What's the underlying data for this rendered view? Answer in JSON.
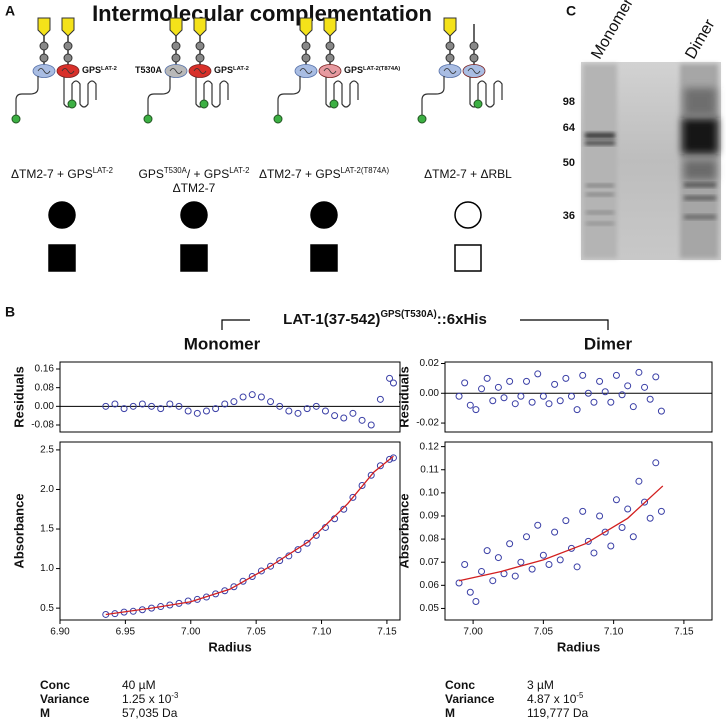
{
  "panel_a": {
    "label": "A",
    "title": "Intermolecular complementation",
    "constructs": [
      {
        "tags": {
          "right": [
            {
              "text": "GPS"
            },
            {
              "sup": "LAT-2"
            }
          ]
        },
        "caption": [
          [
            {
              "text": "ΔTM2-7 + GPS"
            },
            {
              "sup": "LAT-2"
            }
          ]
        ],
        "filled": true
      },
      {
        "tags": {
          "left": [
            {
              "text": "T530A"
            }
          ],
          "right": [
            {
              "text": "GPS"
            },
            {
              "sup": "LAT-2"
            }
          ]
        },
        "caption": [
          [
            {
              "text": "GPS"
            },
            {
              "sup": "T530A"
            },
            {
              "text": "/ + GPS"
            },
            {
              "sup": "LAT-2"
            }
          ],
          [
            {
              "text": "ΔTM2-7"
            }
          ]
        ],
        "filled": true
      },
      {
        "tags": {
          "right": [
            {
              "text": "GPS"
            },
            {
              "sup": "LAT-2(T874A)"
            }
          ]
        },
        "caption": [
          [
            {
              "text": "ΔTM2-7 + GPS"
            },
            {
              "sup": "LAT-2(T874A)"
            }
          ]
        ],
        "filled": true
      },
      {
        "tags": {},
        "caption": [
          [
            {
              "text": "ΔTM2-7 + ΔRBL"
            }
          ]
        ],
        "filled": false
      }
    ]
  },
  "panel_b": {
    "label": "B",
    "title": [
      {
        "text": "LAT-1(37-542)"
      },
      {
        "sup": "GPS(T530A)"
      },
      {
        "text": "::6xHis"
      }
    ],
    "columns": [
      {
        "subtitle": "Monomer",
        "stats": [
          {
            "label": "Conc",
            "value": [
              {
                "text": "40 µM"
              }
            ]
          },
          {
            "label": "Variance",
            "value": [
              {
                "text": "1.25 x 10"
              },
              {
                "sup": "-3"
              }
            ]
          },
          {
            "label": "M",
            "value": [
              {
                "text": "57,035 Da"
              }
            ]
          }
        ]
      },
      {
        "subtitle": "Dimer",
        "stats": [
          {
            "label": "Conc",
            "value": [
              {
                "text": "3 µM"
              }
            ]
          },
          {
            "label": "Variance",
            "value": [
              {
                "text": "4.87 x 10"
              },
              {
                "sup": "-5"
              }
            ]
          },
          {
            "label": "M",
            "value": [
              {
                "text": "119,777 Da"
              }
            ]
          }
        ]
      }
    ]
  },
  "panel_c": {
    "label": "C",
    "lanes": [
      "Monomer",
      "Dimer"
    ],
    "markers": [
      98,
      64,
      50,
      36
    ]
  },
  "chart_data": [
    {
      "type": "scatter",
      "ylabel": "Residuals",
      "zero_line": true,
      "xlim": [
        6.9,
        7.16
      ],
      "ylim": [
        -0.11,
        0.19
      ],
      "yticks": [
        0.16,
        0.08,
        {
          "value": 0,
          "label": "0.00"
        },
        -0.08
      ],
      "series": [
        {
          "color": "#3a3fa6",
          "mode": "markers",
          "x": [
            6.935,
            6.942,
            6.949,
            6.956,
            6.963,
            6.97,
            6.977,
            6.984,
            6.991,
            6.998,
            7.005,
            7.012,
            7.019,
            7.026,
            7.033,
            7.04,
            7.047,
            7.054,
            7.061,
            7.068,
            7.075,
            7.082,
            7.089,
            7.096,
            7.103,
            7.11,
            7.117,
            7.124,
            7.131,
            7.138,
            7.145,
            7.152,
            7.155
          ],
          "values": [
            0.0,
            0.01,
            -0.01,
            0.0,
            0.01,
            0.0,
            -0.01,
            0.01,
            0.0,
            -0.02,
            -0.03,
            -0.02,
            -0.01,
            0.01,
            0.02,
            0.04,
            0.05,
            0.04,
            0.02,
            0.0,
            -0.02,
            -0.03,
            -0.01,
            0.0,
            -0.02,
            -0.04,
            -0.05,
            -0.03,
            -0.06,
            -0.08,
            0.03,
            0.12,
            0.1
          ]
        }
      ]
    },
    {
      "type": "scatter",
      "ylabel": "Absorbance",
      "xlabel": "Radius",
      "xlim": [
        6.9,
        7.16
      ],
      "ylim": [
        0.35,
        2.6
      ],
      "xticks": [
        {
          "value": 6.9,
          "label": "6.90"
        },
        6.95,
        {
          "value": 7,
          "label": "7.00"
        },
        7.05,
        {
          "value": 7.1,
          "label": "7.10"
        },
        7.15
      ],
      "yticks": [
        0.5,
        {
          "value": 1,
          "label": "1.0"
        },
        1.5,
        {
          "value": 2,
          "label": "2.0"
        },
        2.5
      ],
      "series": [
        {
          "color": "#3a3fa6",
          "mode": "markers",
          "x": [
            6.935,
            6.942,
            6.949,
            6.956,
            6.963,
            6.97,
            6.977,
            6.984,
            6.991,
            6.998,
            7.005,
            7.012,
            7.019,
            7.026,
            7.033,
            7.04,
            7.047,
            7.054,
            7.061,
            7.068,
            7.075,
            7.082,
            7.089,
            7.096,
            7.103,
            7.11,
            7.117,
            7.124,
            7.131,
            7.138,
            7.145,
            7.152,
            7.155
          ],
          "values": [
            0.42,
            0.43,
            0.45,
            0.46,
            0.48,
            0.5,
            0.52,
            0.54,
            0.56,
            0.59,
            0.61,
            0.64,
            0.68,
            0.72,
            0.77,
            0.84,
            0.9,
            0.97,
            1.03,
            1.1,
            1.16,
            1.24,
            1.32,
            1.42,
            1.52,
            1.63,
            1.75,
            1.9,
            2.05,
            2.18,
            2.3,
            2.38,
            2.4
          ]
        },
        {
          "color": "#d21f1f",
          "mode": "line",
          "x": [
            6.935,
            6.97,
            7.0,
            7.03,
            7.06,
            7.09,
            7.12,
            7.14,
            7.155
          ],
          "values": [
            0.42,
            0.5,
            0.58,
            0.74,
            1.02,
            1.34,
            1.82,
            2.22,
            2.42
          ]
        }
      ]
    },
    {
      "type": "scatter",
      "ylabel": "Residuals",
      "zero_line": true,
      "xlim": [
        6.98,
        7.17
      ],
      "ylim": [
        -0.026,
        0.021
      ],
      "yticks": [
        0.02,
        {
          "value": 0,
          "label": "0.00"
        },
        -0.02
      ],
      "series": [
        {
          "color": "#3a3fa6",
          "mode": "markers",
          "x": [
            6.99,
            6.994,
            6.998,
            7.002,
            7.006,
            7.01,
            7.014,
            7.018,
            7.022,
            7.026,
            7.03,
            7.034,
            7.038,
            7.042,
            7.046,
            7.05,
            7.054,
            7.058,
            7.062,
            7.066,
            7.07,
            7.074,
            7.078,
            7.082,
            7.086,
            7.09,
            7.094,
            7.098,
            7.102,
            7.106,
            7.11,
            7.114,
            7.118,
            7.122,
            7.126,
            7.13,
            7.134
          ],
          "values": [
            -0.002,
            0.007,
            -0.008,
            -0.011,
            0.003,
            0.01,
            -0.005,
            0.004,
            -0.003,
            0.008,
            -0.007,
            -0.002,
            0.008,
            -0.006,
            0.013,
            -0.002,
            -0.007,
            0.006,
            -0.005,
            0.01,
            -0.002,
            -0.011,
            0.012,
            0.0,
            -0.006,
            0.008,
            0.001,
            -0.006,
            0.012,
            -0.001,
            0.005,
            -0.009,
            0.014,
            0.004,
            -0.004,
            0.011,
            -0.012
          ]
        }
      ]
    },
    {
      "type": "scatter",
      "ylabel": "Absorbance",
      "xlabel": "Radius",
      "xlim": [
        6.98,
        7.17
      ],
      "ylim": [
        0.045,
        0.122
      ],
      "xticks": [
        {
          "value": 7,
          "label": "7.00"
        },
        7.05,
        {
          "value": 7.1,
          "label": "7.10"
        },
        7.15
      ],
      "yticks": [
        0.05,
        0.06,
        0.07,
        0.08,
        0.09,
        {
          "value": 0.1,
          "label": "0.10"
        },
        0.11,
        0.12
      ],
      "series": [
        {
          "color": "#3a3fa6",
          "mode": "markers",
          "x": [
            6.99,
            6.994,
            6.998,
            7.002,
            7.006,
            7.01,
            7.014,
            7.018,
            7.022,
            7.026,
            7.03,
            7.034,
            7.038,
            7.042,
            7.046,
            7.05,
            7.054,
            7.058,
            7.062,
            7.066,
            7.07,
            7.074,
            7.078,
            7.082,
            7.086,
            7.09,
            7.094,
            7.098,
            7.102,
            7.106,
            7.11,
            7.114,
            7.118,
            7.122,
            7.126,
            7.13,
            7.134
          ],
          "values": [
            0.061,
            0.069,
            0.057,
            0.053,
            0.066,
            0.075,
            0.062,
            0.072,
            0.065,
            0.078,
            0.064,
            0.07,
            0.081,
            0.067,
            0.086,
            0.073,
            0.069,
            0.083,
            0.071,
            0.088,
            0.076,
            0.068,
            0.092,
            0.079,
            0.074,
            0.09,
            0.083,
            0.077,
            0.097,
            0.085,
            0.093,
            0.081,
            0.105,
            0.096,
            0.089,
            0.113,
            0.092
          ]
        },
        {
          "color": "#d21f1f",
          "mode": "line",
          "x": [
            6.99,
            7.02,
            7.05,
            7.08,
            7.11,
            7.135
          ],
          "values": [
            0.062,
            0.066,
            0.071,
            0.078,
            0.089,
            0.103
          ]
        }
      ]
    }
  ]
}
